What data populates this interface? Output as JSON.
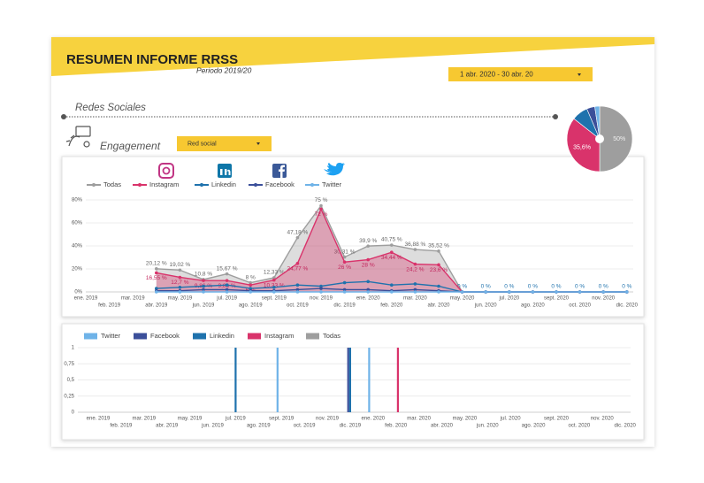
{
  "header": {
    "title": "RESUMEN INFORME RRSS",
    "period": "Periodo 2019/20",
    "date_range": "1 abr. 2020 - 30 abr. 20",
    "section": "Redes Sociales",
    "engagement_label": "Engagement",
    "filter_label": "Red social"
  },
  "chart_data": [
    {
      "type": "line",
      "categories": [
        "ene. 2019",
        "feb. 2019",
        "mar. 2019",
        "abr. 2019",
        "may. 2019",
        "jun. 2019",
        "jul. 2019",
        "ago. 2019",
        "sept. 2019",
        "oct. 2019",
        "nov. 2019",
        "dic. 2019",
        "ene. 2020",
        "feb. 2020",
        "mar. 2020",
        "abr. 2020",
        "may. 2020",
        "jun. 2020",
        "jul. 2020",
        "ago. 2020",
        "sept. 2020",
        "oct. 2020",
        "nov. 2020",
        "dic. 2020"
      ],
      "ylim": [
        0,
        80
      ],
      "yticks": [
        {
          "value": 0,
          "label": "0%"
        },
        {
          "value": 20,
          "label": "20%"
        },
        {
          "value": 40,
          "label": "40%"
        },
        {
          "value": 60,
          "label": "60%"
        },
        {
          "value": 80,
          "label": "80%"
        }
      ],
      "grid": true,
      "series": [
        {
          "name": "Todas",
          "color": "#9e9e9e",
          "area": true,
          "values": [
            null,
            null,
            null,
            20.12,
            19.02,
            10.8,
            15.67,
            8,
            12.33,
            47.18,
            75,
            30.31,
            39.9,
            40.75,
            36.88,
            35.52,
            0,
            0,
            0,
            0,
            0,
            0,
            0,
            0
          ],
          "value_labels": [
            null,
            null,
            null,
            "20,12 %",
            "19,02 %",
            "10,8 %",
            "15,67 %",
            "8 %",
            "12,33 %",
            "47,18 %",
            "75 %",
            "30,31 %",
            "39,9 %",
            "40,75 %",
            "36,88 %",
            "35,52 %",
            "0 %",
            "0 %",
            "0 %",
            "0 %",
            "0 %",
            "0 %",
            "0 %",
            "0 %"
          ]
        },
        {
          "name": "Instagram",
          "color": "#d9336b",
          "area": true,
          "values": [
            null,
            null,
            null,
            16.55,
            12.7,
            9.86,
            9.86,
            6,
            10.33,
            24.77,
            72,
            26,
            28,
            34.44,
            24.2,
            23.6,
            0,
            0,
            0,
            0,
            0,
            0,
            0,
            0
          ],
          "value_labels": [
            null,
            null,
            null,
            "16,55 %",
            "12,7 %",
            "9,86 %",
            "9,86 %",
            "6 %",
            "10,33 %",
            "24,77 %",
            "72 %",
            "26 %",
            "28 %",
            "34,44 %",
            "24,2 %",
            "23,6 %",
            null,
            null,
            null,
            null,
            null,
            null,
            null,
            null
          ]
        },
        {
          "name": "Linkedin",
          "color": "#1f72ad",
          "values": [
            null,
            null,
            null,
            3,
            4,
            5,
            6,
            3,
            4,
            6,
            5,
            8,
            9,
            6,
            7,
            5,
            0,
            0,
            0,
            0,
            0,
            0,
            0,
            0
          ]
        },
        {
          "name": "Facebook",
          "color": "#3b4f9a",
          "values": [
            null,
            null,
            null,
            1,
            1,
            2,
            2,
            1,
            1,
            2,
            3,
            2,
            2,
            1,
            2,
            1,
            0,
            0,
            0,
            0,
            0,
            0,
            0,
            0
          ]
        },
        {
          "name": "Twitter",
          "color": "#6fb3e8",
          "values": [
            null,
            null,
            null,
            0,
            0,
            0,
            0,
            0,
            0,
            0,
            0,
            0,
            0,
            0,
            0,
            0,
            0,
            0,
            0,
            0,
            0,
            0,
            0,
            0
          ]
        }
      ]
    },
    {
      "type": "bar",
      "categories": [
        "ene. 2019",
        "feb. 2019",
        "mar. 2019",
        "abr. 2019",
        "may. 2019",
        "jun. 2019",
        "jul. 2019",
        "ago. 2019",
        "sept. 2019",
        "oct. 2019",
        "nov. 2019",
        "dic. 2019",
        "ene. 2020",
        "feb. 2020",
        "mar. 2020",
        "abr. 2020",
        "may. 2020",
        "jun. 2020",
        "jul. 2020",
        "ago. 2020",
        "sept. 2020",
        "oct. 2020",
        "nov. 2020",
        "dic. 2020"
      ],
      "ylim": [
        0,
        1
      ],
      "yticks": [
        0,
        {
          "value": 0.25,
          "label": "0,25"
        },
        {
          "value": 0.5,
          "label": "0,5"
        },
        {
          "value": 0.75,
          "label": "0,75"
        },
        1
      ],
      "grid": true,
      "series": [
        {
          "name": "Twitter",
          "color": "#6fb3e8",
          "values": [
            0,
            0,
            0,
            0,
            0,
            0,
            0,
            0,
            1,
            0,
            0,
            0,
            1,
            0,
            0,
            0,
            0,
            0,
            0,
            0,
            0,
            0,
            0,
            0
          ]
        },
        {
          "name": "Facebook",
          "color": "#3b4f9a",
          "values": [
            0,
            0,
            0,
            0,
            0,
            0,
            0,
            0,
            0,
            0,
            0,
            1,
            0,
            0,
            0,
            0,
            0,
            0,
            0,
            0,
            0,
            0,
            0,
            0
          ]
        },
        {
          "name": "Linkedin",
          "color": "#1f72ad",
          "values": [
            0,
            0,
            0,
            0,
            0,
            0,
            1,
            0,
            0,
            0,
            0,
            1,
            0,
            0,
            0,
            0,
            0,
            0,
            0,
            0,
            0,
            0,
            0,
            0
          ]
        },
        {
          "name": "Instagram",
          "color": "#d9336b",
          "values": [
            0,
            0,
            0,
            0,
            0,
            0,
            0,
            0,
            0,
            0,
            0,
            0,
            0,
            1,
            0,
            0,
            0,
            0,
            0,
            0,
            0,
            0,
            0,
            0
          ]
        },
        {
          "name": "Todas",
          "color": "#9e9e9e",
          "values": [
            0,
            0,
            0,
            0,
            0,
            0,
            0,
            0,
            0,
            0,
            0,
            0,
            0,
            0,
            0,
            0,
            0,
            0,
            0,
            0,
            0,
            0,
            0,
            0
          ]
        }
      ]
    },
    {
      "type": "pie",
      "categories": [
        "Todas",
        "Instagram",
        "Linkedin",
        "Facebook",
        "Twitter"
      ],
      "colors": [
        "#9e9e9e",
        "#d9336b",
        "#1f72ad",
        "#3b4f9a",
        "#6fb3e8"
      ],
      "values": [
        50,
        35.6,
        8,
        4,
        2.4
      ],
      "value_labels": [
        "50%",
        "35,6%",
        null,
        null,
        null
      ]
    }
  ]
}
